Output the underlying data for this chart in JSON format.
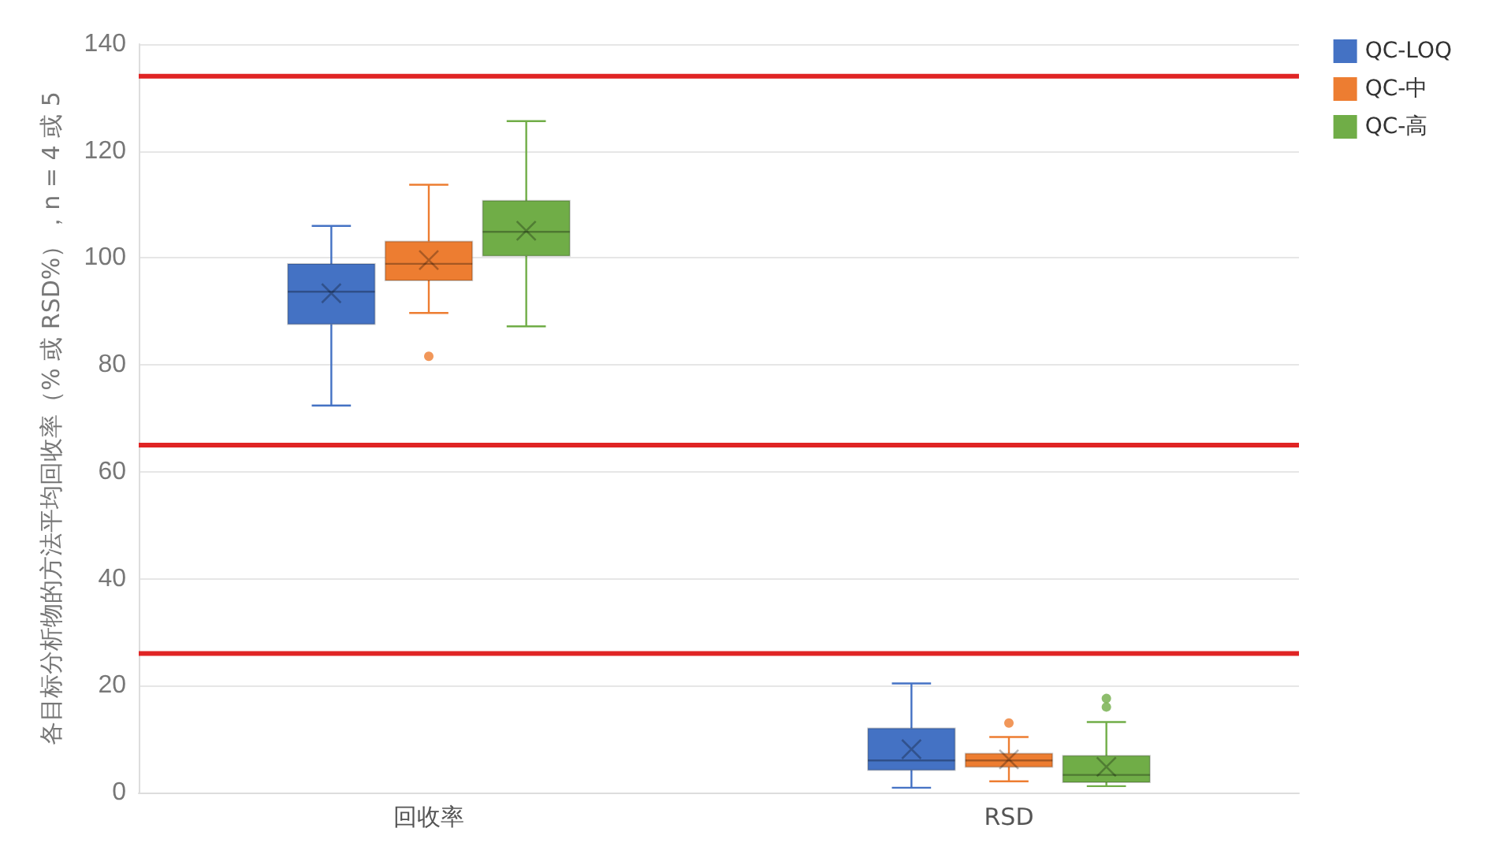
{
  "chart_data": {
    "type": "box",
    "ylabel": "各目标分析物的方法平均回收率（% 或 RSD%），n = 4 或 5",
    "categories": [
      "回收率",
      "RSD"
    ],
    "series": [
      {
        "name": "QC-LOQ",
        "color": "#4472c4",
        "boxes": [
          {
            "low": 72.4,
            "q1": 87.6,
            "median": 93.7,
            "q3": 98.9,
            "high": 106,
            "mean": 93.4
          },
          {
            "low": 0.9,
            "q1": 4.2,
            "median": 6.0,
            "q3": 12.0,
            "high": 20.4,
            "mean": 8.1
          }
        ]
      },
      {
        "name": "QC-中",
        "color": "#ed7d31",
        "boxes": [
          {
            "low": 89.7,
            "q1": 95.8,
            "median": 98.9,
            "q3": 103.1,
            "high": 113.7,
            "mean": 99.6,
            "outliers": [
              81.6
            ]
          },
          {
            "low": 2.1,
            "q1": 4.8,
            "median": 6.0,
            "q3": 7.3,
            "high": 10.4,
            "mean": 6.2,
            "outliers": [
              13.0
            ]
          }
        ]
      },
      {
        "name": "QC-高",
        "color": "#70ad47",
        "boxes": [
          {
            "low": 87.2,
            "q1": 100.4,
            "median": 104.9,
            "q3": 110.7,
            "high": 125.6,
            "mean": 105.1
          },
          {
            "low": 1.2,
            "q1": 1.9,
            "median": 3.3,
            "q3": 6.9,
            "high": 13.2,
            "mean": 4.8,
            "outliers": [
              16.0,
              17.6
            ]
          }
        ]
      }
    ],
    "ylim": [
      0,
      140
    ],
    "yticks": [
      0,
      20,
      40,
      60,
      80,
      100,
      120,
      140
    ],
    "grid": "y",
    "legend": "top right",
    "ref_lines": [
      {
        "axis": "y",
        "value": 134,
        "color": "#e02424"
      },
      {
        "axis": "y",
        "value": 65,
        "color": "#e02424"
      },
      {
        "axis": "y",
        "value": 26,
        "color": "#e02424"
      }
    ]
  }
}
